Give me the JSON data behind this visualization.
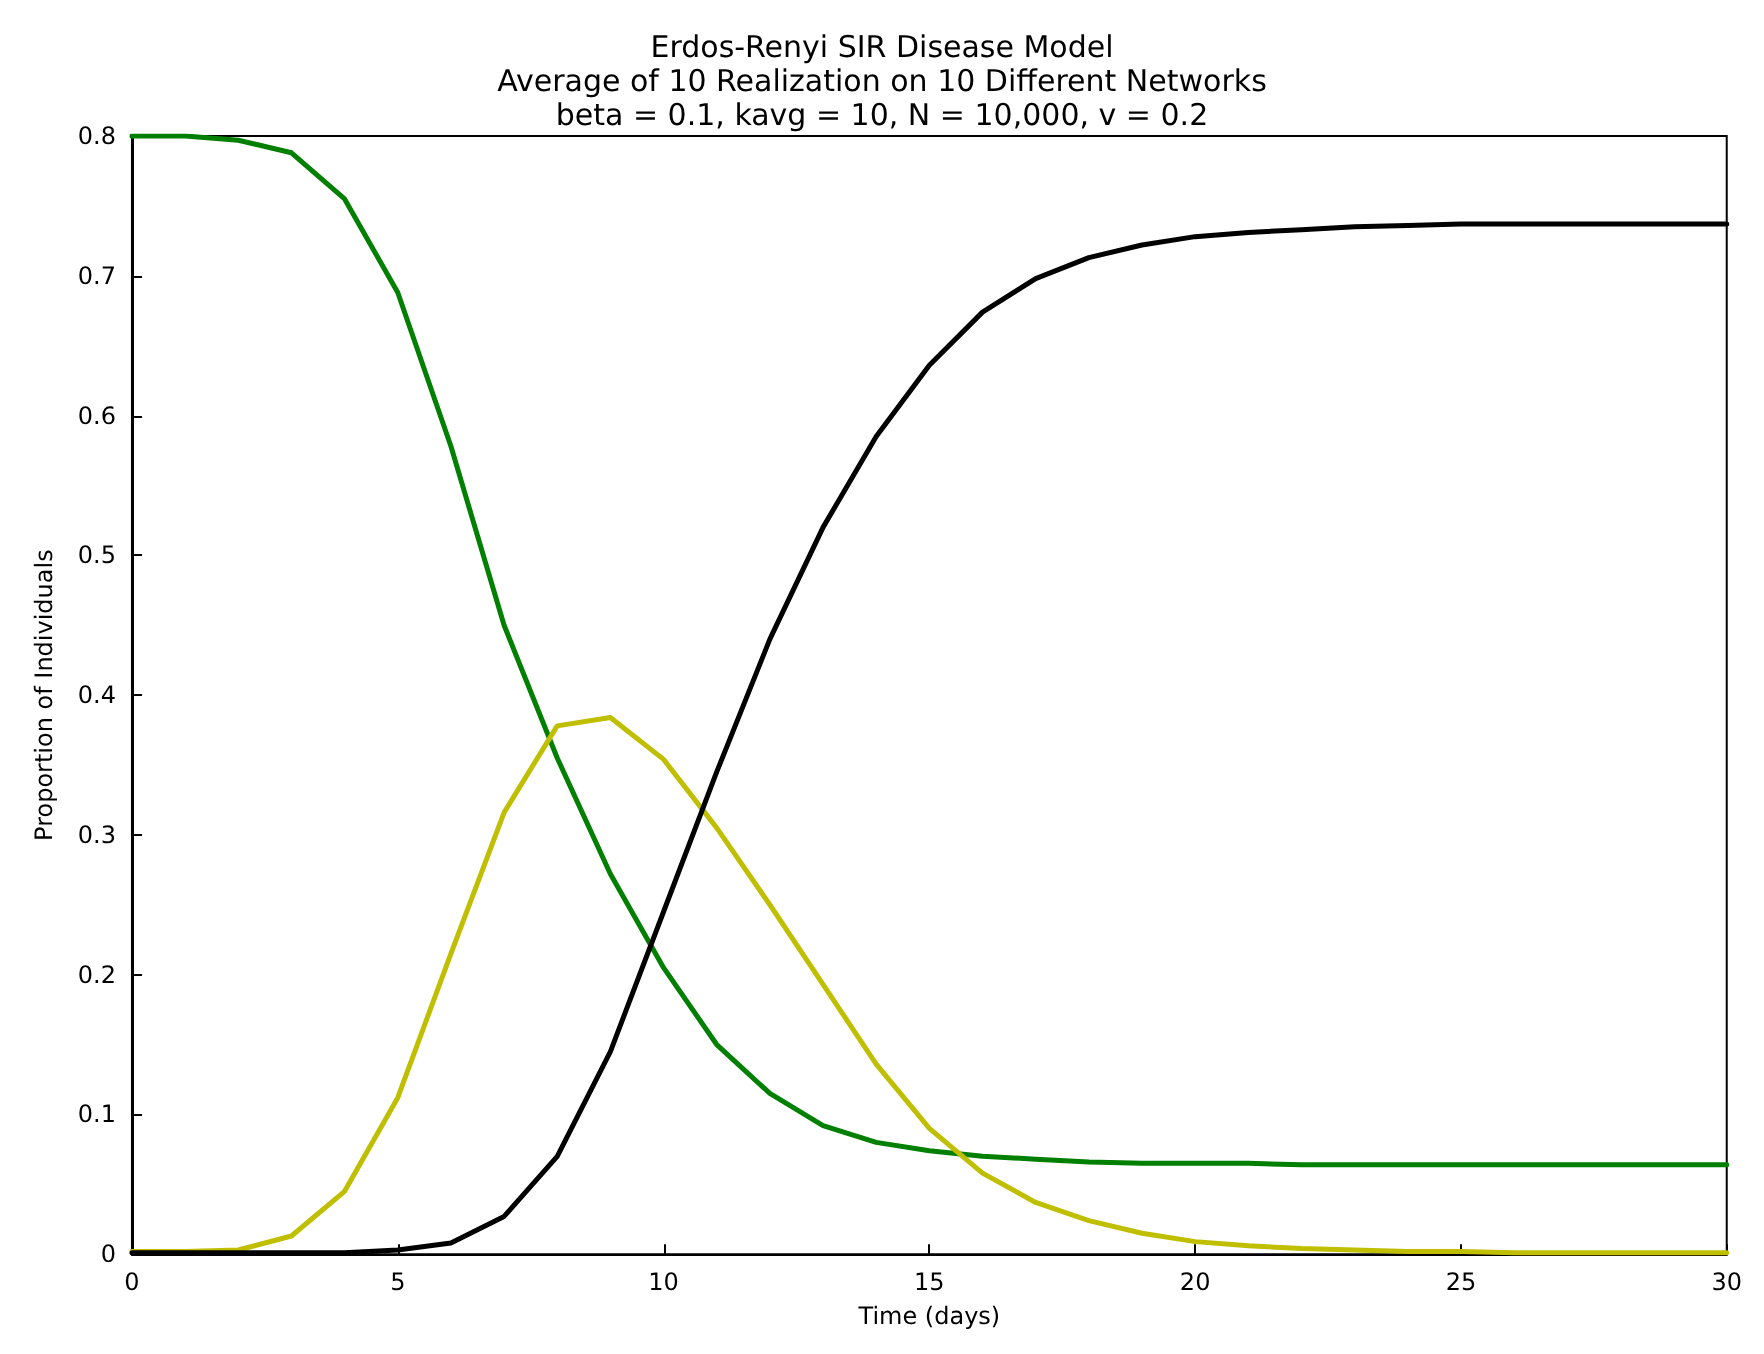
{
  "chart_data": {
    "type": "line",
    "title": "Erdos-Renyi SIR Disease Model\nAverage of 10 Realization on 10 Different Networks\nbeta = 0.1, kavg = 10, N = 10,000, v = 0.2",
    "xlabel": "Time (days)",
    "ylabel": "Proportion of Individuals",
    "x": [
      0,
      1,
      2,
      3,
      4,
      5,
      6,
      7,
      8,
      9,
      10,
      11,
      12,
      13,
      14,
      15,
      16,
      17,
      18,
      19,
      20,
      21,
      22,
      23,
      24,
      25,
      26,
      27,
      28,
      29,
      30
    ],
    "series": [
      {
        "color": "#007f00",
        "values": [
          0.8,
          0.8,
          0.797,
          0.788,
          0.755,
          0.688,
          0.578,
          0.45,
          0.355,
          0.272,
          0.205,
          0.15,
          0.115,
          0.092,
          0.08,
          0.074,
          0.07,
          0.068,
          0.066,
          0.065,
          0.065,
          0.065,
          0.064,
          0.064,
          0.064,
          0.064,
          0.064,
          0.064,
          0.064,
          0.064,
          0.064
        ]
      },
      {
        "color": "#bfbf00",
        "values": [
          0.002,
          0.002,
          0.003,
          0.013,
          0.045,
          0.112,
          0.215,
          0.316,
          0.378,
          0.384,
          0.354,
          0.305,
          0.25,
          0.193,
          0.136,
          0.09,
          0.058,
          0.037,
          0.024,
          0.015,
          0.009,
          0.006,
          0.004,
          0.003,
          0.002,
          0.002,
          0.001,
          0.001,
          0.001,
          0.001,
          0.001
        ]
      },
      {
        "color": "#000000",
        "values": [
          0.001,
          0.001,
          0.001,
          0.001,
          0.001,
          0.003,
          0.008,
          0.027,
          0.07,
          0.145,
          0.245,
          0.345,
          0.44,
          0.52,
          0.585,
          0.636,
          0.674,
          0.698,
          0.713,
          0.722,
          0.728,
          0.731,
          0.733,
          0.735,
          0.736,
          0.737,
          0.737,
          0.737,
          0.737,
          0.737,
          0.737
        ]
      }
    ],
    "xlim": [
      0,
      30
    ],
    "xticks": [
      0,
      5,
      10,
      15,
      20,
      25,
      30
    ],
    "ylim": [
      0,
      0.8
    ],
    "yticks": [
      0,
      0.1,
      0.2,
      0.3,
      0.4,
      0.5,
      0.6,
      0.7,
      0.8
    ],
    "grid": false,
    "marker": "none",
    "line_style": "solid"
  }
}
